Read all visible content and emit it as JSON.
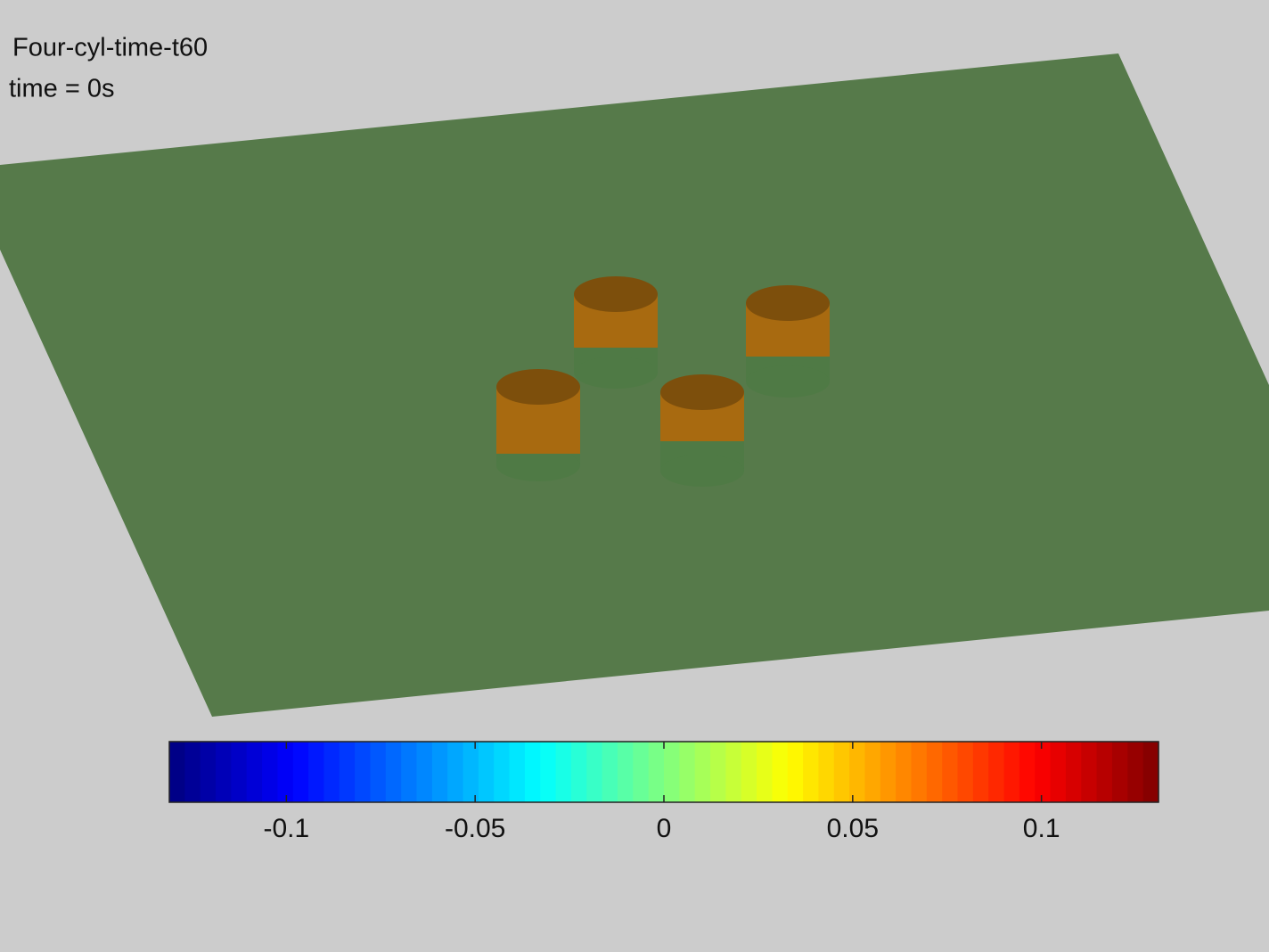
{
  "chart_data": {
    "type": "colorbar",
    "title": "Four-cyl-time-t60",
    "subtitle": "time = 0s",
    "colormap": "jet",
    "xlim": [
      -0.131,
      0.131
    ],
    "xticks": [
      -0.1,
      -0.05,
      0,
      0.05,
      0.1
    ]
  }
}
